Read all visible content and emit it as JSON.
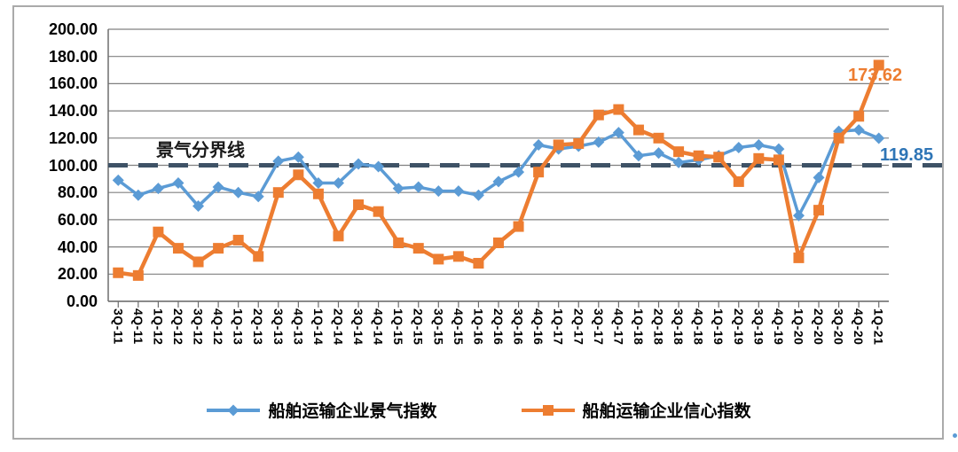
{
  "chart_data": {
    "type": "line",
    "categories": [
      "3Q-11",
      "4Q-11",
      "1Q-12",
      "2Q-12",
      "3Q-12",
      "4Q-12",
      "1Q-13",
      "2Q-13",
      "3Q-13",
      "4Q-13",
      "1Q-14",
      "2Q-14",
      "3Q-14",
      "4Q-14",
      "1Q-15",
      "2Q-15",
      "3Q-15",
      "4Q-15",
      "1Q-16",
      "2Q-16",
      "3Q-16",
      "4Q-16",
      "1Q-17",
      "2Q-17",
      "3Q-17",
      "4Q-17",
      "1Q-18",
      "2Q-18",
      "3Q-18",
      "4Q-18",
      "1Q-19",
      "2Q-19",
      "3Q-19",
      "4Q-19",
      "1Q-20",
      "2Q-20",
      "3Q-20",
      "4Q-20",
      "1Q-21"
    ],
    "series": [
      {
        "name": "船舶运输企业景气指数",
        "color": "#5B9BD5",
        "marker": "diamond",
        "line_width": 3.5,
        "values": [
          89,
          78,
          83,
          87,
          70,
          84,
          80,
          77,
          103,
          106,
          87,
          87,
          101,
          99,
          83,
          84,
          81,
          81,
          78,
          88,
          95,
          115,
          112,
          114,
          117,
          124,
          107,
          109,
          102,
          104,
          107,
          113,
          115,
          112,
          63,
          91,
          125,
          126,
          119.85
        ]
      },
      {
        "name": "船舶运输企业信心指数",
        "color": "#ED7D31",
        "marker": "square",
        "line_width": 4.5,
        "values": [
          21,
          19,
          51,
          39,
          29,
          39,
          45,
          33,
          80,
          93,
          79,
          48,
          71,
          66,
          43,
          39,
          31,
          33,
          28,
          43,
          55,
          95,
          115,
          116,
          137,
          141,
          126,
          120,
          110,
          107,
          106,
          88,
          105,
          104,
          32,
          67,
          120,
          136,
          173.62
        ]
      }
    ],
    "baseline": {
      "value": 100,
      "label": "景气分界线",
      "color": "#3E5266"
    },
    "ylim": [
      0,
      200
    ],
    "ytick_step": 20,
    "yticks": [
      "200.00",
      "180.00",
      "160.00",
      "140.00",
      "120.00",
      "100.00",
      "80.00",
      "60.00",
      "40.00",
      "20.00",
      "0.00"
    ],
    "grid": true,
    "legend_position": "bottom",
    "annotations": [
      {
        "text": "173.62",
        "series": "船舶运输企业信心指数",
        "color": "#ED7D31"
      },
      {
        "text": "119.85",
        "series": "船舶运输企业景气指数",
        "color": "#2E75B6"
      }
    ]
  }
}
